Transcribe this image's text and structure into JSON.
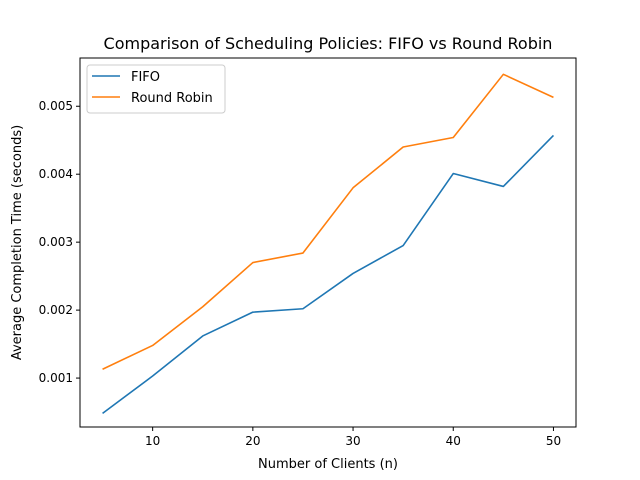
{
  "chart_data": {
    "type": "line",
    "title": "Comparison of Scheduling Policies: FIFO vs Round Robin",
    "xlabel": "Number of Clients (n)",
    "ylabel": "Average Completion Time (seconds)",
    "x": [
      5,
      10,
      15,
      20,
      25,
      30,
      35,
      40,
      45,
      50
    ],
    "xticks": [
      10,
      20,
      30,
      40,
      50
    ],
    "yticks": [
      0.001,
      0.002,
      0.003,
      0.004,
      0.005
    ],
    "ytick_labels": [
      "0.001",
      "0.002",
      "0.003",
      "0.004",
      "0.005"
    ],
    "xlim": [
      2.75,
      52.25
    ],
    "ylim": [
      0.00028,
      0.00571
    ],
    "grid": false,
    "legend_position": "top-left",
    "series": [
      {
        "name": "FIFO",
        "color": "#1f77b4",
        "values": [
          0.00048,
          0.00103,
          0.00162,
          0.00197,
          0.00202,
          0.00254,
          0.00295,
          0.00401,
          0.00382,
          0.00457
        ]
      },
      {
        "name": "Round Robin",
        "color": "#ff7f0e",
        "values": [
          0.00113,
          0.00148,
          0.00205,
          0.0027,
          0.00284,
          0.0038,
          0.0044,
          0.00454,
          0.00547,
          0.00513
        ]
      }
    ]
  }
}
